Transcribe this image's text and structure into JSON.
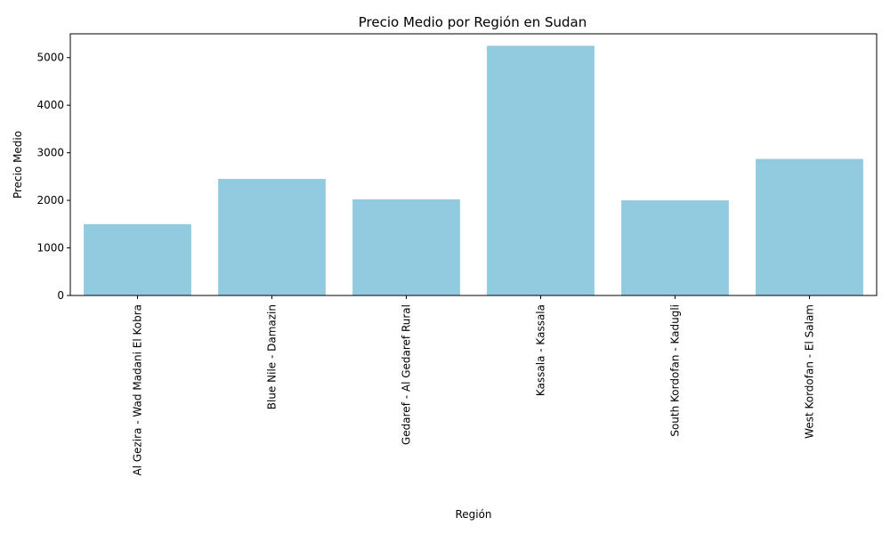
{
  "chart_data": {
    "type": "bar",
    "title": "Precio Medio por Región en Sudan",
    "xlabel": "Región",
    "ylabel": "Precio Medio",
    "categories": [
      "Al Gezira - Wad Madani El Kobra",
      "Blue Nile - Damazin",
      "Gedaref - Al Gedaref Rural",
      "Kassala - Kassala",
      "South Kordofan - Kadugli",
      "West Kordofan - El Salam"
    ],
    "values": [
      1500,
      2450,
      2020,
      5250,
      2000,
      2870
    ],
    "ylim": [
      0,
      5500
    ],
    "yticks": [
      "0",
      "1000",
      "2000",
      "3000",
      "4000",
      "5000"
    ],
    "bar_color": "#92cbe0",
    "grid": false,
    "legend": "none"
  }
}
